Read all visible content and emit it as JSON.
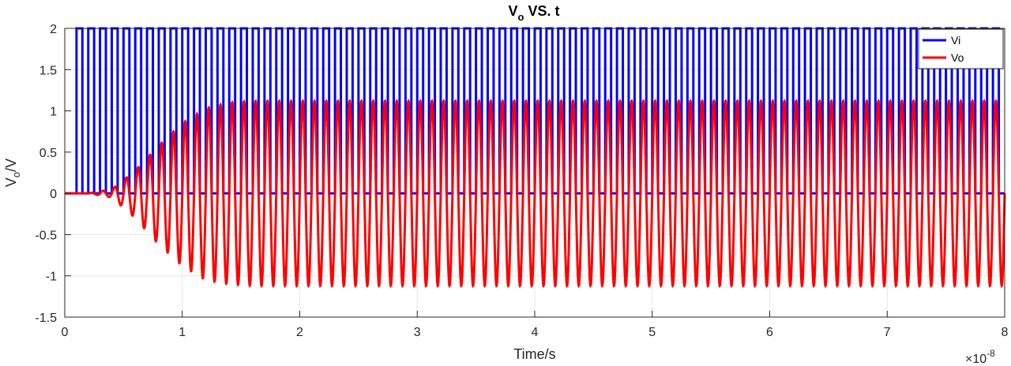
{
  "chart_data": {
    "type": "line",
    "title": {
      "main": "V",
      "sub": "o",
      "rest": " VS. t"
    },
    "xlabel": "Time/s",
    "ylabel": {
      "main": "V",
      "sub": "o",
      "rest": "/V"
    },
    "x_multiplier": {
      "base": "×10",
      "exp": "-8"
    },
    "xlim": [
      0,
      8
    ],
    "ylim": [
      -1.5,
      2
    ],
    "xticks": [
      "0",
      "1",
      "2",
      "3",
      "4",
      "5",
      "6",
      "7",
      "8"
    ],
    "yticks": [
      "-1.5",
      "-1",
      "-0.5",
      "0",
      "0.5",
      "1",
      "1.5",
      "2"
    ],
    "grid": true,
    "legend_position": "top-right",
    "series": [
      {
        "name": "Vi",
        "color": "#0000ff",
        "kind": "square_wave",
        "period": 0.1,
        "low": 0,
        "high": 2,
        "start": 0.1
      },
      {
        "name": "Vo",
        "color": "#ff0000",
        "kind": "damped_oscillation",
        "period": 0.1,
        "steady_max": 1.12,
        "steady_min": -1.12,
        "start": 0.2,
        "rise_end": 1.6,
        "envelope_samples": [
          {
            "x": 0.4,
            "max": 0.05,
            "min": -0.05
          },
          {
            "x": 0.6,
            "max": 0.28,
            "min": -0.3
          },
          {
            "x": 0.8,
            "max": 0.58,
            "min": -0.62
          },
          {
            "x": 1.0,
            "max": 0.85,
            "min": -0.88
          },
          {
            "x": 1.2,
            "max": 1.03,
            "min": -1.05
          },
          {
            "x": 1.4,
            "max": 1.1,
            "min": -1.1
          },
          {
            "x": 1.6,
            "max": 1.12,
            "min": -1.12
          }
        ]
      }
    ]
  }
}
